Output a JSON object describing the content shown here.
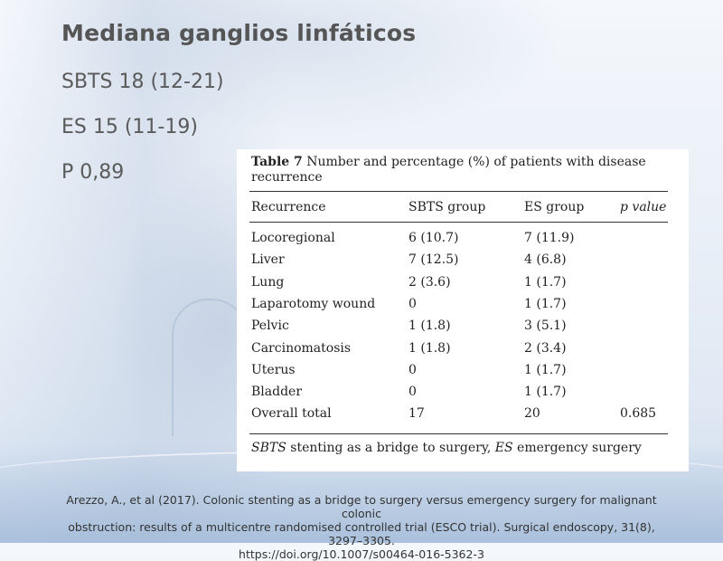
{
  "slide": {
    "title": "Mediana ganglios linfáticos",
    "lines": [
      "SBTS 18 (12-21)",
      "ES 15 (11-19)",
      "P 0,89"
    ]
  },
  "table": {
    "caption_label": "Table 7",
    "caption_text": "Number and percentage (%) of patients with disease recurrence",
    "headers": [
      "Recurrence",
      "SBTS group",
      "ES group",
      "p value"
    ],
    "rows": [
      [
        "Locoregional",
        "6 (10.7)",
        "7 (11.9)",
        ""
      ],
      [
        "Liver",
        "7 (12.5)",
        "4 (6.8)",
        ""
      ],
      [
        "Lung",
        "2 (3.6)",
        "1 (1.7)",
        ""
      ],
      [
        "Laparotomy wound",
        "0",
        "1 (1.7)",
        ""
      ],
      [
        "Pelvic",
        "1 (1.8)",
        "3 (5.1)",
        ""
      ],
      [
        "Carcinomatosis",
        "1 (1.8)",
        "2 (3.4)",
        ""
      ],
      [
        "Uterus",
        "0",
        "1 (1.7)",
        ""
      ],
      [
        "Bladder",
        "0",
        "1 (1.7)",
        ""
      ],
      [
        "Overall total",
        "17",
        "20",
        "0.685"
      ]
    ],
    "footnote": {
      "abbr1": "SBTS",
      "def1": "stenting as a bridge to surgery,",
      "abbr2": "ES",
      "def2": "emergency surgery"
    }
  },
  "reference": {
    "line1": "Arezzo, A., et al (2017). Colonic stenting as a bridge to surgery versus emergency surgery for malignant colonic",
    "line2": "obstruction: results of a multicentre randomised controlled trial (ESCO trial). Surgical endoscopy, 31(8), 3297–3305.",
    "line3": "https://doi.org/10.1007/s00464-016-5362-3"
  }
}
